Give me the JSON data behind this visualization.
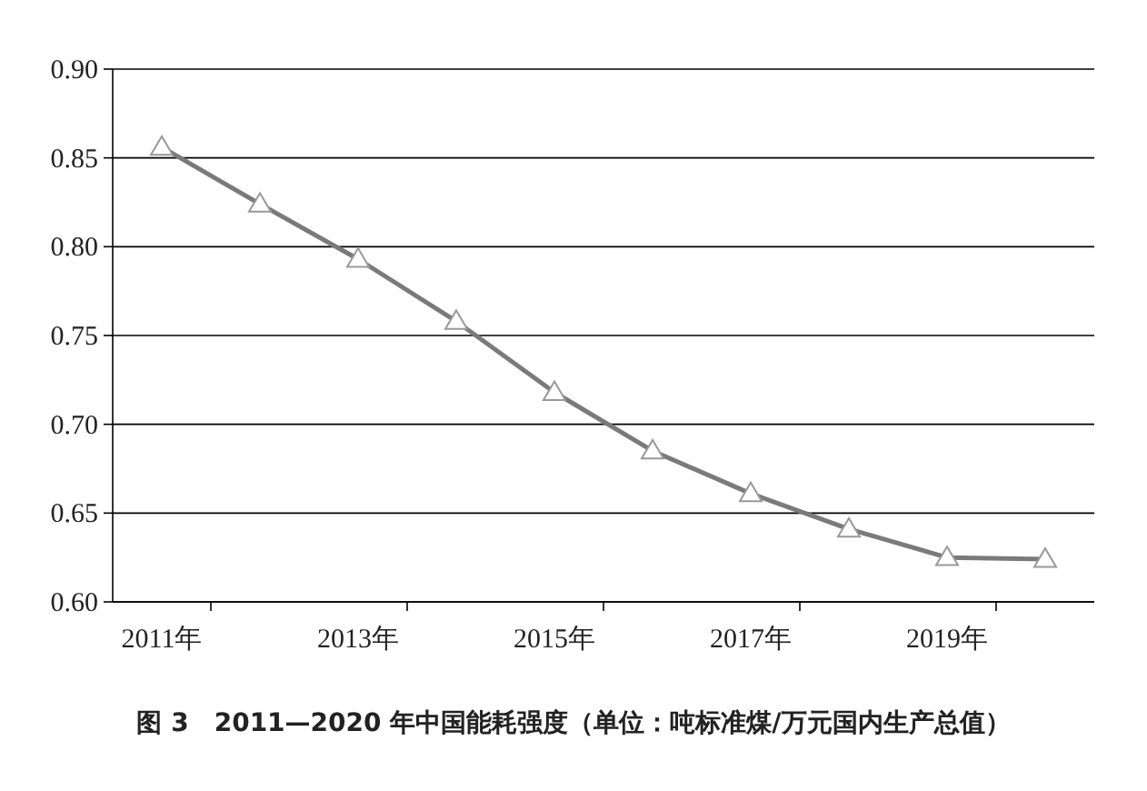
{
  "chart_data": {
    "type": "line",
    "title": "图 3　2011—2020 年中国能耗强度（单位：吨标准煤/万元国内生产总值）",
    "categories": [
      "2011年",
      null,
      "2013年",
      null,
      "2015年",
      null,
      "2017年",
      null,
      "2019年",
      null
    ],
    "series": [
      {
        "color": "#7a7a7a",
        "values": [
          0.856,
          0.824,
          0.793,
          0.758,
          0.718,
          0.685,
          0.661,
          0.641,
          0.625,
          0.624
        ]
      }
    ],
    "ylim": [
      0.6,
      0.9
    ],
    "yticks": [
      {
        "value": 0.6,
        "label": "0.60"
      },
      {
        "value": 0.65,
        "label": "0.65"
      },
      {
        "value": 0.7,
        "label": "0.70"
      },
      {
        "value": 0.75,
        "label": "0.75"
      },
      {
        "value": 0.8,
        "label": "0.80"
      },
      {
        "value": 0.85,
        "label": "0.85"
      },
      {
        "value": 0.9,
        "label": "0.90"
      }
    ],
    "grid": "y",
    "marker": "triangle",
    "line_style": "solid"
  }
}
